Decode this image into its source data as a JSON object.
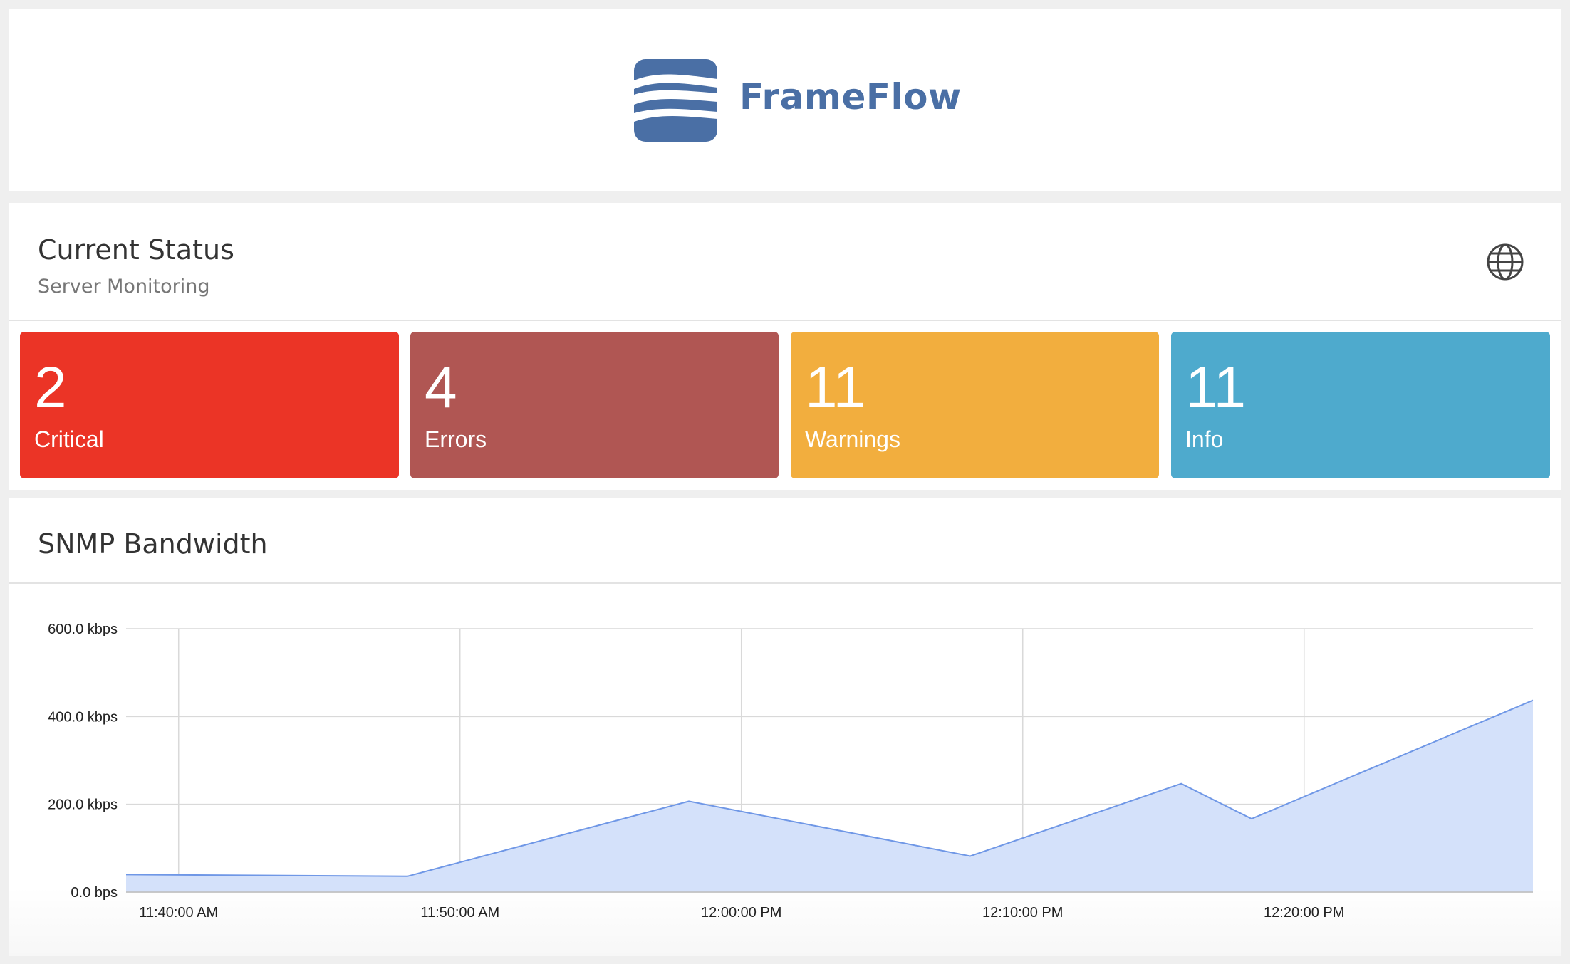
{
  "brand": {
    "name": "FrameFlow",
    "color": "#4a6fa5"
  },
  "status": {
    "title": "Current Status",
    "subtitle": "Server Monitoring",
    "globe_icon": "globe-icon",
    "tiles": [
      {
        "count": "2",
        "label": "Critical",
        "color": "#eb3426"
      },
      {
        "count": "4",
        "label": "Errors",
        "color": "#b05653"
      },
      {
        "count": "11",
        "label": "Warnings",
        "color": "#f2ae3e"
      },
      {
        "count": "11",
        "label": "Info",
        "color": "#4eaacd"
      }
    ]
  },
  "bandwidth": {
    "title": "SNMP Bandwidth"
  },
  "chart_data": {
    "type": "area",
    "ylabel_ticks": [
      "0.0 bps",
      "200.0 kbps",
      "400.0 kbps",
      "600.0 kbps"
    ],
    "ylim": [
      0,
      600
    ],
    "y_unit": "kbps",
    "xlim": [
      "11:38:08",
      "12:28:08"
    ],
    "x_ticks": [
      {
        "time": "11:40:00",
        "label": "11:40:00 AM"
      },
      {
        "time": "11:50:00",
        "label": "11:50:00 AM"
      },
      {
        "time": "12:00:00",
        "label": "12:00:00 PM"
      },
      {
        "time": "12:10:00",
        "label": "12:10:00 PM"
      },
      {
        "time": "12:20:00",
        "label": "12:20:00 PM"
      }
    ],
    "series": [
      {
        "points": [
          {
            "x": "11:38:08",
            "y": 40
          },
          {
            "x": "11:48:08",
            "y": 36
          },
          {
            "x": "11:58:08",
            "y": 207
          },
          {
            "x": "12:08:08",
            "y": 82
          },
          {
            "x": "12:15:38",
            "y": 247
          },
          {
            "x": "12:18:08",
            "y": 167
          },
          {
            "x": "12:28:08",
            "y": 437
          }
        ]
      }
    ],
    "grid": true,
    "fill_color": "#d4e1fa",
    "line_color": "#6f97e6"
  }
}
